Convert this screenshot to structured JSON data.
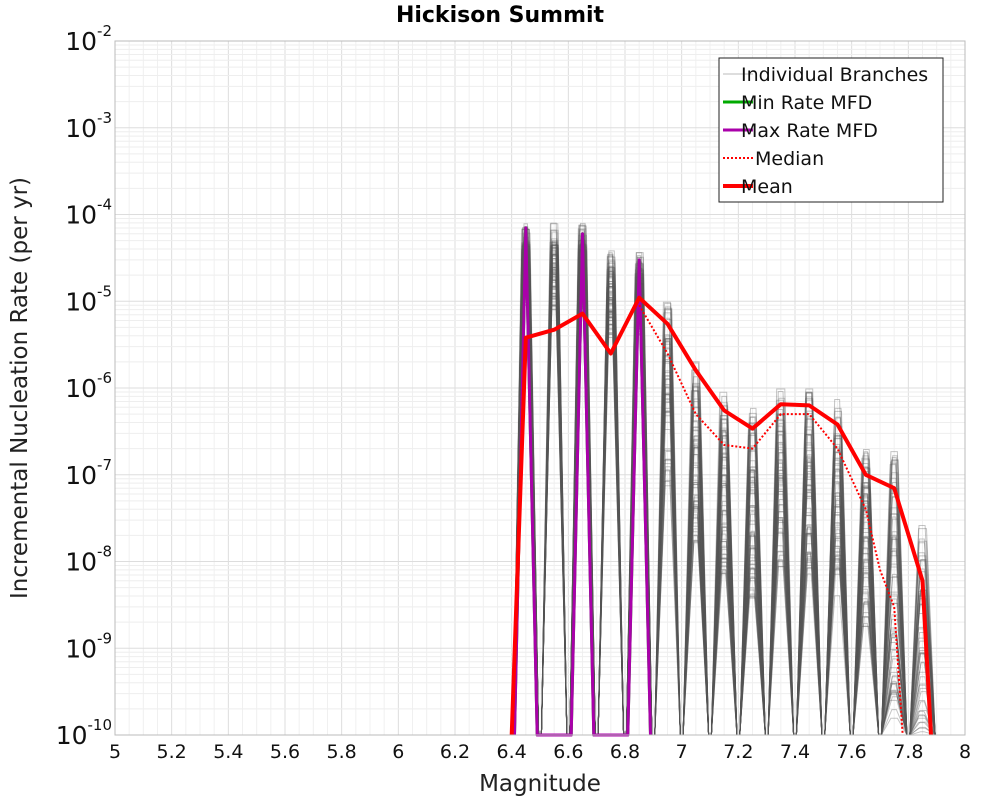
{
  "chart_data": {
    "type": "line",
    "title": "Hickison Summit",
    "xlabel": "Magnitude",
    "ylabel": "Incremental Nucleation Rate (per yr)",
    "xlim": [
      5,
      8
    ],
    "ylim": [
      1e-10,
      0.01
    ],
    "yscale": "log",
    "grid": true,
    "legend_position": "top-right",
    "x_ticks": [
      "5",
      "5.2",
      "5.4",
      "5.6",
      "5.8",
      "6",
      "6.2",
      "6.4",
      "6.6",
      "6.8",
      "7",
      "7.2",
      "7.4",
      "7.6",
      "7.8",
      "8"
    ],
    "y_ticks": [
      {
        "base": "10",
        "exp": "-2",
        "value": 0.01
      },
      {
        "base": "10",
        "exp": "-3",
        "value": 0.001
      },
      {
        "base": "10",
        "exp": "-4",
        "value": 0.0001
      },
      {
        "base": "10",
        "exp": "-5",
        "value": 1e-05
      },
      {
        "base": "10",
        "exp": "-6",
        "value": 1e-06
      },
      {
        "base": "10",
        "exp": "-7",
        "value": 1e-07
      },
      {
        "base": "10",
        "exp": "-8",
        "value": 1e-08
      },
      {
        "base": "10",
        "exp": "-9",
        "value": 1e-09
      },
      {
        "base": "10",
        "exp": "-10",
        "value": 1e-10
      }
    ],
    "series": [
      {
        "name": "Individual Branches",
        "color": "#555555",
        "style": "solid-thin",
        "representative": true,
        "points": [
          [
            6.45,
            7e-05
          ],
          [
            6.55,
            6e-05
          ],
          [
            6.65,
            6e-05
          ],
          [
            6.75,
            3e-05
          ],
          [
            6.85,
            3e-05
          ],
          [
            6.95,
            1e-05
          ],
          [
            7.05,
            2e-06
          ],
          [
            7.15,
            8e-07
          ],
          [
            7.25,
            5e-07
          ],
          [
            7.35,
            9e-07
          ],
          [
            7.45,
            1e-06
          ],
          [
            7.55,
            6e-07
          ],
          [
            7.65,
            2e-07
          ],
          [
            7.75,
            1.5e-07
          ],
          [
            7.85,
            2.5e-08
          ]
        ]
      },
      {
        "name": "Min Rate MFD",
        "color": "#00aa00",
        "style": "solid",
        "points": [
          [
            6.41,
            1e-10
          ],
          [
            6.45,
            7e-05
          ],
          [
            6.49,
            1e-10
          ],
          [
            6.61,
            1e-10
          ],
          [
            6.65,
            6e-05
          ],
          [
            6.69,
            1e-10
          ],
          [
            6.81,
            1e-10
          ],
          [
            6.85,
            3e-05
          ],
          [
            6.89,
            1e-10
          ]
        ]
      },
      {
        "name": "Max Rate MFD",
        "color": "#aa00aa",
        "style": "solid",
        "points": [
          [
            6.41,
            1e-10
          ],
          [
            6.45,
            7e-05
          ],
          [
            6.49,
            1e-10
          ],
          [
            6.61,
            1e-10
          ],
          [
            6.65,
            6e-05
          ],
          [
            6.69,
            1e-10
          ],
          [
            6.81,
            1e-10
          ],
          [
            6.85,
            3e-05
          ],
          [
            6.89,
            1e-10
          ]
        ]
      },
      {
        "name": "Median",
        "color": "#ff0000",
        "style": "dotted",
        "points": [
          [
            6.85,
            9e-06
          ],
          [
            6.95,
            2.5e-06
          ],
          [
            7.05,
            5e-07
          ],
          [
            7.15,
            2.2e-07
          ],
          [
            7.25,
            2e-07
          ],
          [
            7.35,
            5e-07
          ],
          [
            7.45,
            5e-07
          ],
          [
            7.55,
            2e-07
          ],
          [
            7.65,
            4e-08
          ],
          [
            7.7,
            8e-09
          ],
          [
            7.75,
            3e-09
          ],
          [
            7.78,
            1e-10
          ]
        ]
      },
      {
        "name": "Mean",
        "color": "#ff0000",
        "style": "solid-thick",
        "points": [
          [
            6.4,
            1e-10
          ],
          [
            6.45,
            3.8e-06
          ],
          [
            6.55,
            4.7e-06
          ],
          [
            6.65,
            7.2e-06
          ],
          [
            6.75,
            2.5e-06
          ],
          [
            6.85,
            1.1e-05
          ],
          [
            6.95,
            5.5e-06
          ],
          [
            7.05,
            1.6e-06
          ],
          [
            7.15,
            5.5e-07
          ],
          [
            7.25,
            3.4e-07
          ],
          [
            7.35,
            6.5e-07
          ],
          [
            7.45,
            6.3e-07
          ],
          [
            7.55,
            3.8e-07
          ],
          [
            7.65,
            1e-07
          ],
          [
            7.75,
            7e-08
          ],
          [
            7.85,
            6e-09
          ],
          [
            7.88,
            1e-10
          ]
        ]
      }
    ]
  }
}
